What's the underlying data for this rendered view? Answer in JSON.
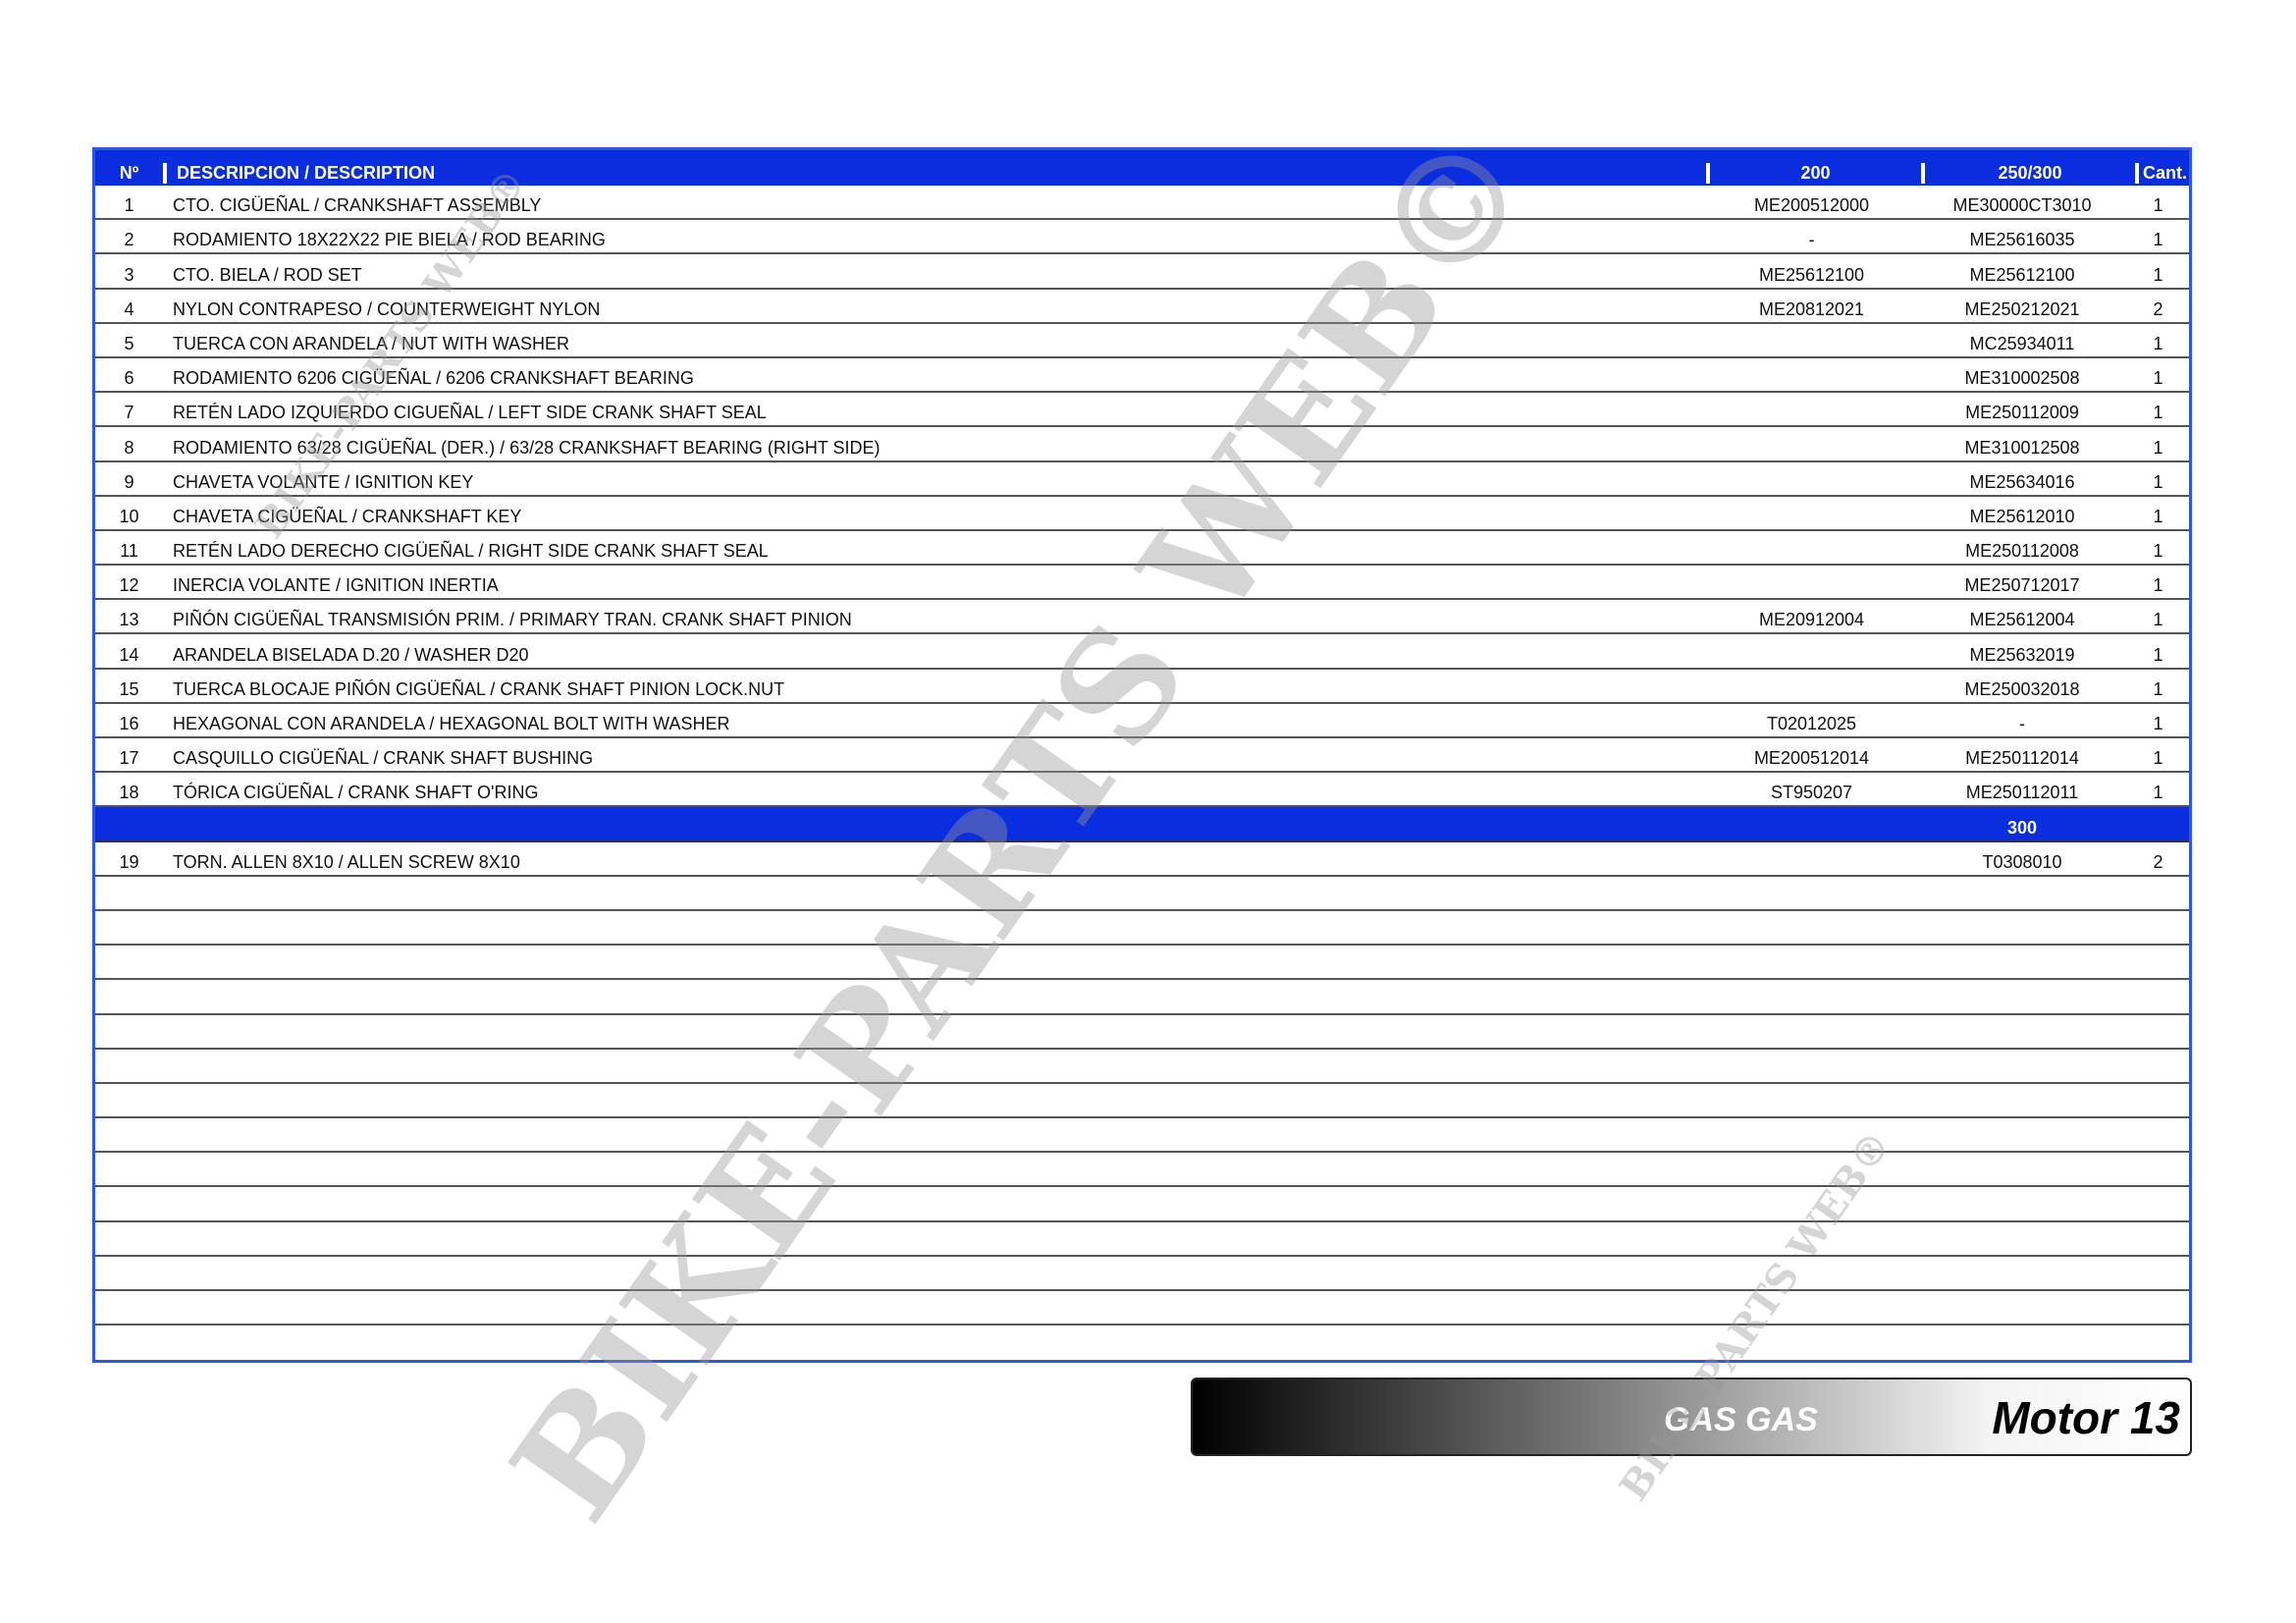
{
  "table": {
    "headers": {
      "no": "Nº",
      "description": "DESCRIPCION / DESCRIPTION",
      "col200": "200",
      "col250_300": "250/300",
      "qty": "Cant."
    },
    "rows": [
      {
        "no": "1",
        "desc": "CTO. CIGÜEÑAL / CRANKSHAFT ASSEMBLY",
        "p200": "ME200512000",
        "p250": "ME30000CT3010",
        "qty": "1"
      },
      {
        "no": "2",
        "desc": "RODAMIENTO 18X22X22 PIE BIELA / ROD BEARING",
        "p200": "-",
        "p250": "ME25616035",
        "qty": "1"
      },
      {
        "no": "3",
        "desc": "CTO. BIELA / ROD SET",
        "p200": "ME25612100",
        "p250": "ME25612100",
        "qty": "1"
      },
      {
        "no": "4",
        "desc": "NYLON CONTRAPESO / COUNTERWEIGHT NYLON",
        "p200": "ME20812021",
        "p250": "ME250212021",
        "qty": "2"
      },
      {
        "no": "5",
        "desc": "TUERCA CON ARANDELA / NUT WITH WASHER",
        "p200": "",
        "p250": "MC25934011",
        "qty": "1"
      },
      {
        "no": "6",
        "desc": "RODAMIENTO 6206 CIGÜEÑAL / 6206 CRANKSHAFT BEARING",
        "p200": "",
        "p250": "ME310002508",
        "qty": "1"
      },
      {
        "no": "7",
        "desc": "RETÉN LADO IZQUIERDO CIGUEÑAL / LEFT SIDE CRANK SHAFT SEAL",
        "p200": "",
        "p250": "ME250112009",
        "qty": "1"
      },
      {
        "no": "8",
        "desc": "RODAMIENTO 63/28 CIGÜEÑAL (DER.) / 63/28 CRANKSHAFT BEARING (RIGHT SIDE)",
        "p200": "",
        "p250": "ME310012508",
        "qty": "1"
      },
      {
        "no": "9",
        "desc": "CHAVETA VOLANTE / IGNITION KEY",
        "p200": "",
        "p250": "ME25634016",
        "qty": "1"
      },
      {
        "no": "10",
        "desc": "CHAVETA CIGÜEÑAL / CRANKSHAFT KEY",
        "p200": "",
        "p250": "ME25612010",
        "qty": "1"
      },
      {
        "no": "11",
        "desc": "RETÉN LADO DERECHO CIGÜEÑAL / RIGHT SIDE CRANK SHAFT SEAL",
        "p200": "",
        "p250": "ME250112008",
        "qty": "1"
      },
      {
        "no": "12",
        "desc": "INERCIA VOLANTE / IGNITION INERTIA",
        "p200": "",
        "p250": "ME250712017",
        "qty": "1"
      },
      {
        "no": "13",
        "desc": "PIÑÓN CIGÜEÑAL TRANSMISIÓN PRIM. / PRIMARY TRAN. CRANK SHAFT PINION",
        "p200": "ME20912004",
        "p250": "ME25612004",
        "qty": "1"
      },
      {
        "no": "14",
        "desc": "ARANDELA BISELADA D.20 / WASHER D20",
        "p200": "",
        "p250": "ME25632019",
        "qty": "1"
      },
      {
        "no": "15",
        "desc": "TUERCA BLOCAJE PIÑÓN CIGÜEÑAL / CRANK SHAFT PINION LOCK.NUT",
        "p200": "",
        "p250": "ME250032018",
        "qty": "1"
      },
      {
        "no": "16",
        "desc": "HEXAGONAL CON ARANDELA / HEXAGONAL BOLT WITH WASHER",
        "p200": "T02012025",
        "p250": "-",
        "qty": "1"
      },
      {
        "no": "17",
        "desc": "CASQUILLO CIGÜEÑAL / CRANK SHAFT BUSHING",
        "p200": "ME200512014",
        "p250": "ME250112014",
        "qty": "1"
      },
      {
        "no": "18",
        "desc": "TÓRICA CIGÜEÑAL / CRANK SHAFT O'RING",
        "p200": "ST950207",
        "p250": "ME250112011",
        "qty": "1"
      }
    ],
    "subheader": {
      "label": "300"
    },
    "rows_300": [
      {
        "no": "19",
        "desc": "TORN. ALLEN 8X10 / ALLEN SCREW 8X10",
        "p200": "",
        "p250": "T0308010",
        "qty": "2"
      }
    ],
    "empty_rows": 14
  },
  "footer": {
    "brand": "GAS GAS",
    "section": "Motor 13"
  },
  "watermark": {
    "text": "BIKE-PARTS WEB©",
    "small_text": "BIKE-PARTS WEB®"
  },
  "colors": {
    "header_blue": "#0a2de0",
    "border_blue": "#2f55f0"
  }
}
